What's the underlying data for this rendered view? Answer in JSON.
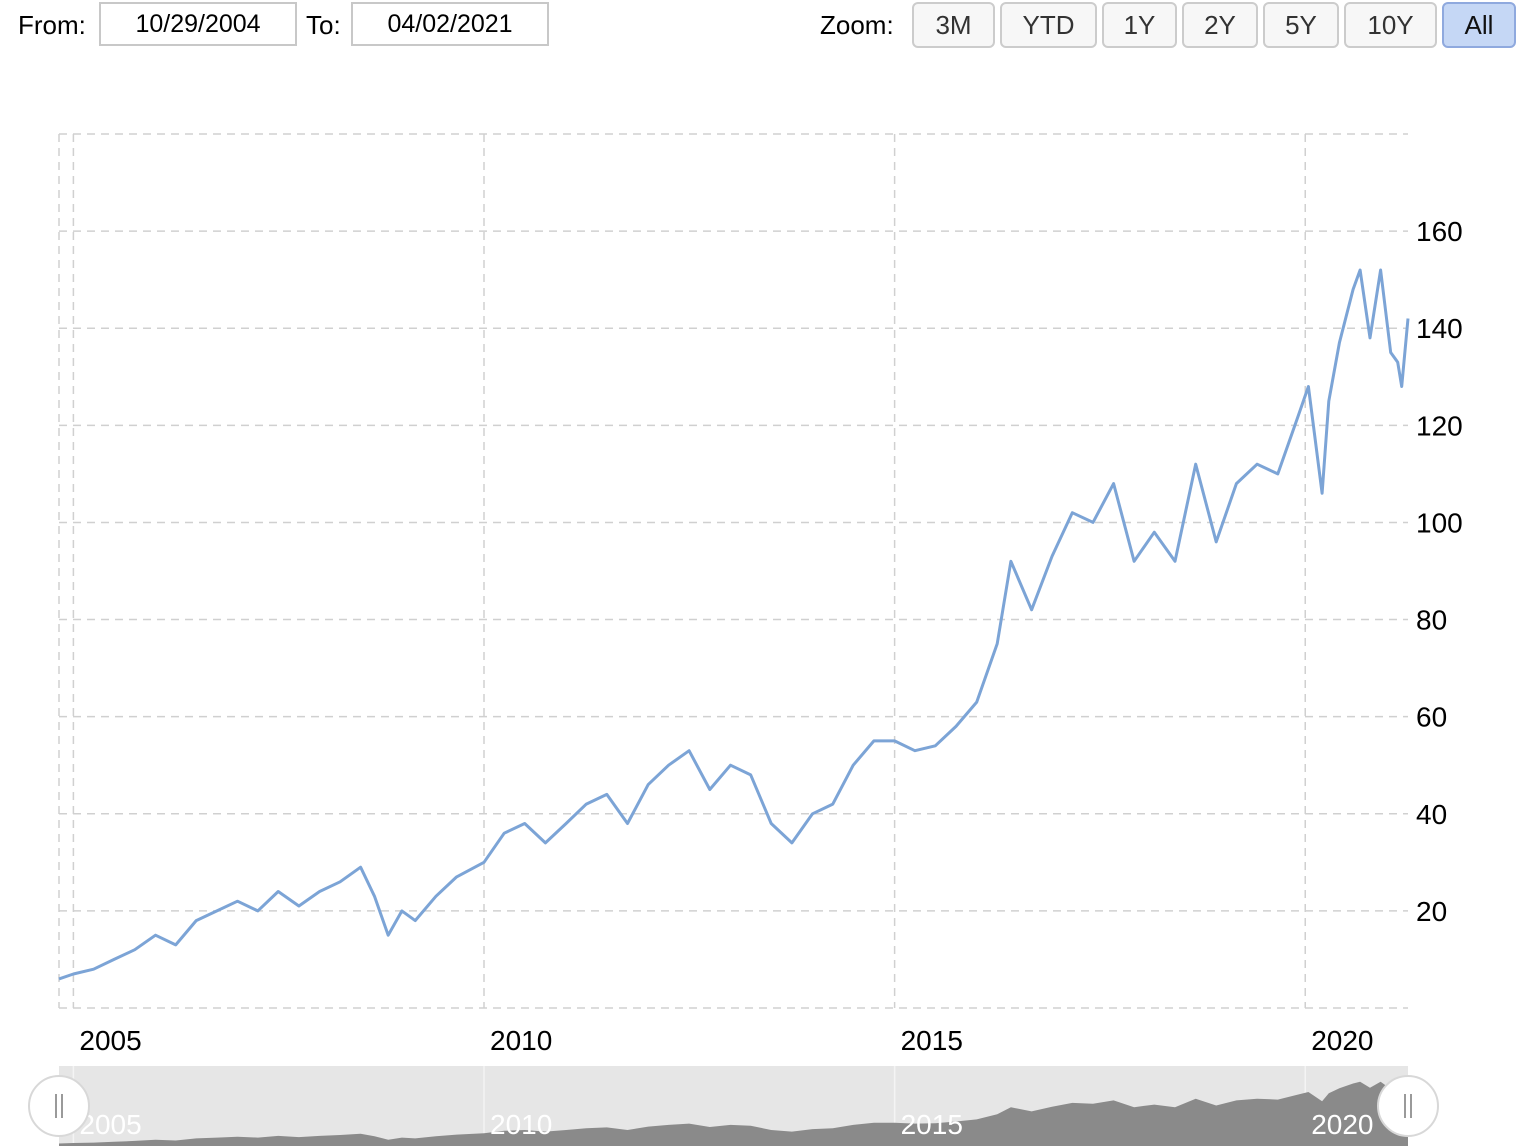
{
  "range": {
    "from_label": "From:",
    "from_value": "10/29/2004",
    "to_label": "To:",
    "to_value": "04/02/2021"
  },
  "zoom": {
    "label": "Zoom:",
    "buttons": [
      {
        "label": "3M",
        "active": false
      },
      {
        "label": "YTD",
        "active": false
      },
      {
        "label": "1Y",
        "active": false
      },
      {
        "label": "2Y",
        "active": false
      },
      {
        "label": "5Y",
        "active": false
      },
      {
        "label": "10Y",
        "active": false
      },
      {
        "label": "All",
        "active": true
      }
    ]
  },
  "colors": {
    "line": "#7ca4d6",
    "grid": "#d0d0d0",
    "navigator_fill": "#8a8a8a",
    "navigator_bg": "#e6e6e6",
    "zoom_active": "#c5d7f5"
  },
  "navigator": {
    "handle_left_icon": "drag-handle-icon",
    "handle_right_icon": "drag-handle-icon",
    "tick_labels": [
      "2005",
      "2010",
      "2015",
      "2020"
    ]
  },
  "chart_data": {
    "type": "line",
    "title": "",
    "xlabel": "",
    "ylabel": "",
    "x_axis": "date",
    "xlim": [
      "2004-10-29",
      "2021-04-02"
    ],
    "ylim": [
      0,
      180
    ],
    "y_ticks": [
      20,
      40,
      60,
      80,
      100,
      120,
      140,
      160
    ],
    "x_ticks": [
      "2005",
      "2010",
      "2015",
      "2020"
    ],
    "grid": true,
    "legend": "none",
    "series": [
      {
        "x": [
          "2004-10-29",
          "2005-01-01",
          "2005-04-01",
          "2005-07-01",
          "2005-10-01",
          "2006-01-01",
          "2006-04-01",
          "2006-07-01",
          "2006-10-01",
          "2007-01-01",
          "2007-04-01",
          "2007-07-01",
          "2007-10-01",
          "2008-01-01",
          "2008-04-01",
          "2008-07-01",
          "2008-09-01",
          "2008-11-01",
          "2009-01-01",
          "2009-03-01",
          "2009-06-01",
          "2009-09-01",
          "2010-01-01",
          "2010-04-01",
          "2010-07-01",
          "2010-10-01",
          "2011-01-01",
          "2011-04-01",
          "2011-07-01",
          "2011-10-01",
          "2012-01-01",
          "2012-04-01",
          "2012-07-01",
          "2012-10-01",
          "2013-01-01",
          "2013-04-01",
          "2013-07-01",
          "2013-10-01",
          "2014-01-01",
          "2014-04-01",
          "2014-07-01",
          "2014-10-01",
          "2015-01-01",
          "2015-04-01",
          "2015-07-01",
          "2015-10-01",
          "2016-01-01",
          "2016-04-01",
          "2016-06-01",
          "2016-09-01",
          "2016-12-01",
          "2017-03-01",
          "2017-06-01",
          "2017-09-01",
          "2017-12-01",
          "2018-03-01",
          "2018-06-01",
          "2018-09-01",
          "2018-12-01",
          "2019-03-01",
          "2019-06-01",
          "2019-09-01",
          "2019-12-01",
          "2020-01-15",
          "2020-03-16",
          "2020-04-15",
          "2020-06-01",
          "2020-08-01",
          "2020-09-01",
          "2020-10-15",
          "2020-12-01",
          "2021-01-15",
          "2021-02-15",
          "2021-03-05",
          "2021-04-02"
        ],
        "values": [
          6,
          7,
          8,
          10,
          12,
          15,
          13,
          18,
          20,
          22,
          20,
          24,
          21,
          24,
          26,
          29,
          23,
          15,
          20,
          18,
          23,
          27,
          30,
          36,
          38,
          34,
          38,
          42,
          44,
          38,
          46,
          50,
          53,
          45,
          50,
          48,
          38,
          34,
          40,
          42,
          50,
          55,
          55,
          53,
          54,
          58,
          63,
          75,
          92,
          82,
          93,
          102,
          100,
          108,
          92,
          98,
          92,
          112,
          96,
          108,
          112,
          110,
          122,
          128,
          106,
          125,
          137,
          148,
          152,
          138,
          152,
          135,
          133,
          128,
          142
        ]
      }
    ]
  }
}
